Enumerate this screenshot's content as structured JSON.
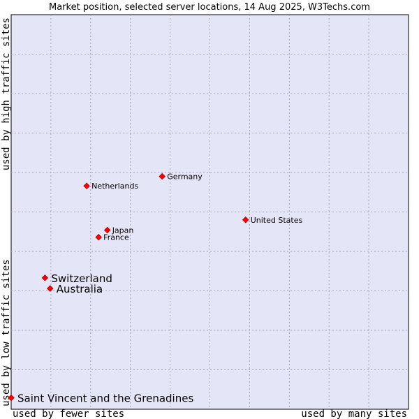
{
  "chart_data": {
    "type": "scatter",
    "title": "Market position, selected server locations, 14 Aug 2025, W3Techs.com",
    "xlabel_left": "used by fewer sites",
    "xlabel_right": "used by many sites",
    "ylabel_bottom": "used by low traffic sites",
    "ylabel_top": "used by high traffic sites",
    "xlim": [
      0,
      10
    ],
    "ylim": [
      0,
      10
    ],
    "grid": true,
    "colors": {
      "plot_bg": "#e5e5f8",
      "grid": "#a0a0c0",
      "marker": "#ff0000",
      "marker_edge": "#b00000"
    },
    "points": [
      {
        "label": "Germany",
        "x": 3.8,
        "y": 5.9,
        "size": "small"
      },
      {
        "label": "Netherlands",
        "x": 1.9,
        "y": 5.66,
        "size": "small"
      },
      {
        "label": "United States",
        "x": 5.9,
        "y": 4.8,
        "size": "small"
      },
      {
        "label": "Japan",
        "x": 2.42,
        "y": 4.54,
        "size": "small"
      },
      {
        "label": "France",
        "x": 2.2,
        "y": 4.36,
        "size": "small"
      },
      {
        "label": "Switzerland",
        "x": 0.85,
        "y": 3.33,
        "size": "large"
      },
      {
        "label": "Australia",
        "x": 0.98,
        "y": 3.06,
        "size": "large"
      },
      {
        "label": "Saint Vincent and the Grenadines",
        "x": 0.0,
        "y": 0.29,
        "size": "large"
      }
    ]
  }
}
